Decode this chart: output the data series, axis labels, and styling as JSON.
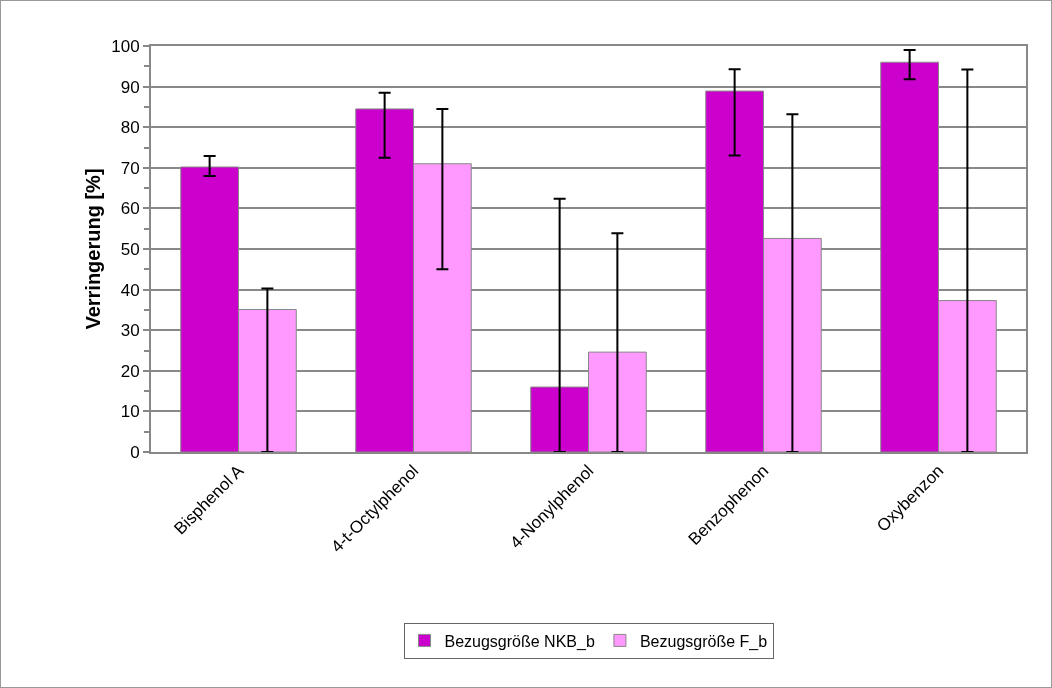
{
  "chart_data": {
    "type": "bar",
    "ylabel": "Verringerung [%]",
    "categories": [
      "Bisphenol A",
      "4-t-Octylphenol",
      "4-Nonylphenol",
      "Benzophenon",
      "Oxybenzon"
    ],
    "series": [
      {
        "name": "Bezugsgröße NKB_b",
        "color": "#cc00cc",
        "values": [
          70.2,
          84.5,
          16.0,
          88.9,
          96.0
        ],
        "errors": [
          [
            68.0,
            72.9
          ],
          [
            72.5,
            88.5
          ],
          [
            0,
            62.4
          ],
          [
            73.0,
            94.3
          ],
          [
            91.8,
            99.0
          ]
        ]
      },
      {
        "name": "Bezugsgröße F_b",
        "color": "#ff99ff",
        "values": [
          35.1,
          71.0,
          24.6,
          52.6,
          37.3
        ],
        "errors": [
          [
            0,
            40.3
          ],
          [
            45.0,
            84.5
          ],
          [
            0,
            53.9
          ],
          [
            0,
            83.2
          ],
          [
            0,
            94.2
          ]
        ]
      }
    ],
    "ylim": [
      0,
      100
    ],
    "yticks": [
      0,
      10,
      20,
      30,
      40,
      50,
      60,
      70,
      80,
      90,
      100
    ],
    "grid": "y",
    "legend": "bottom"
  }
}
